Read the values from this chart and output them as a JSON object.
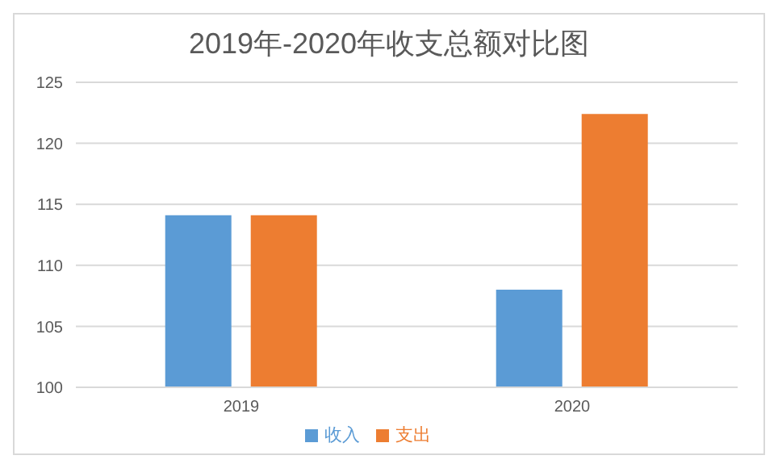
{
  "chart_data": {
    "type": "bar",
    "title": "2019年-2020年收支总额对比图",
    "categories": [
      "2019",
      "2020"
    ],
    "series": [
      {
        "name": "收入",
        "color": "#5b9bd5",
        "values": [
          114.1,
          108.0
        ]
      },
      {
        "name": "支出",
        "color": "#ed7d31",
        "values": [
          114.1,
          122.4
        ]
      }
    ],
    "ylim": [
      100,
      125
    ],
    "yticks": [
      100,
      105,
      110,
      115,
      120,
      125
    ],
    "grid": "y",
    "legend": "bottom"
  }
}
